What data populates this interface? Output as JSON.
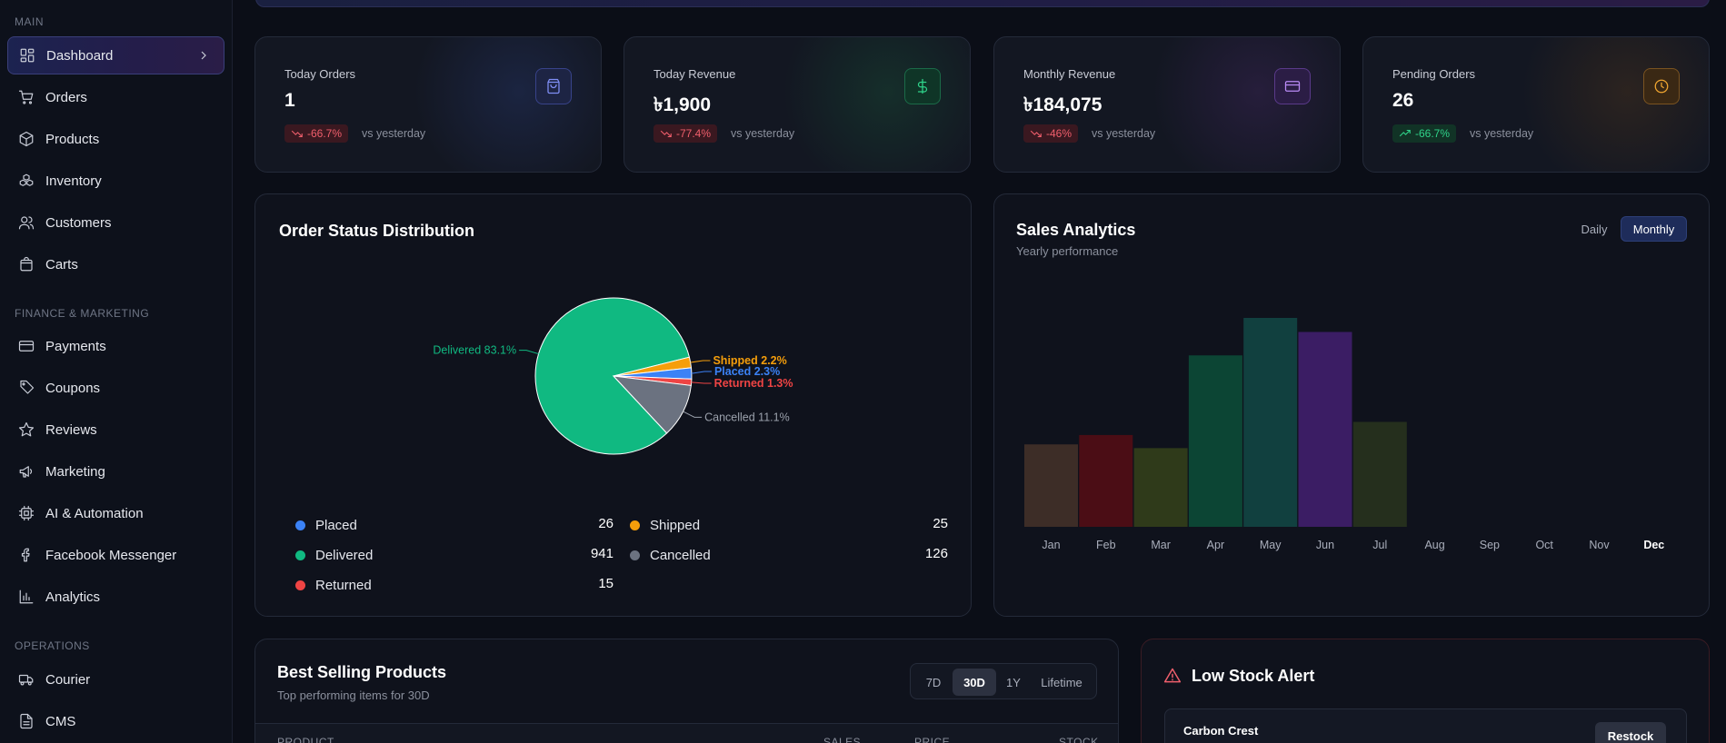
{
  "sidebar": {
    "sections": [
      {
        "title": "MAIN"
      },
      {
        "title": "FINANCE & MARKETING"
      },
      {
        "title": "OPERATIONS"
      }
    ],
    "items": [
      {
        "label": "Dashboard",
        "icon": "dashboard-icon"
      },
      {
        "label": "Orders",
        "icon": "cart-icon"
      },
      {
        "label": "Products",
        "icon": "box-icon"
      },
      {
        "label": "Inventory",
        "icon": "boxes-icon"
      },
      {
        "label": "Customers",
        "icon": "users-icon"
      },
      {
        "label": "Carts",
        "icon": "bag-icon"
      },
      {
        "label": "Payments",
        "icon": "card-icon"
      },
      {
        "label": "Coupons",
        "icon": "tag-icon"
      },
      {
        "label": "Reviews",
        "icon": "star-icon"
      },
      {
        "label": "Marketing",
        "icon": "megaphone-icon"
      },
      {
        "label": "AI & Automation",
        "icon": "chip-icon"
      },
      {
        "label": "Facebook Messenger",
        "icon": "facebook-icon"
      },
      {
        "label": "Analytics",
        "icon": "bar-chart-icon"
      },
      {
        "label": "Courier",
        "icon": "truck-icon"
      },
      {
        "label": "CMS",
        "icon": "document-icon"
      }
    ]
  },
  "stats": [
    {
      "label": "Today Orders",
      "value": "1",
      "change": "-66.7%",
      "trend": "down",
      "vs": "vs yesterday",
      "icon": "shopping-bag-icon",
      "accent": "#6b7cf0"
    },
    {
      "label": "Today Revenue",
      "value": "৳1,900",
      "change": "-77.4%",
      "trend": "down",
      "vs": "vs yesterday",
      "icon": "dollar-icon",
      "accent": "#2fd48a"
    },
    {
      "label": "Monthly Revenue",
      "value": "৳184,075",
      "change": "-46%",
      "trend": "down",
      "vs": "vs yesterday",
      "icon": "credit-card-icon",
      "accent": "#a974f0"
    },
    {
      "label": "Pending Orders",
      "value": "26",
      "change": "-66.7%",
      "trend": "up",
      "vs": "vs yesterday",
      "icon": "clock-icon",
      "accent": "#f0a530"
    }
  ],
  "order_status": {
    "title": "Order Status Distribution",
    "legend": [
      {
        "name": "Placed",
        "value": "26",
        "color": "#3b82f6"
      },
      {
        "name": "Shipped",
        "value": "25",
        "color": "#f59e0b"
      },
      {
        "name": "Delivered",
        "value": "941",
        "color": "#10b981"
      },
      {
        "name": "Cancelled",
        "value": "126",
        "color": "#6b7280"
      },
      {
        "name": "Returned",
        "value": "15",
        "color": "#ef4444"
      }
    ]
  },
  "sales": {
    "title": "Sales Analytics",
    "subtitle": "Yearly performance",
    "toggle_daily": "Daily",
    "toggle_monthly": "Monthly"
  },
  "best_selling": {
    "title": "Best Selling Products",
    "subtitle": "Top performing items for 30D",
    "ranges": [
      "7D",
      "30D",
      "1Y",
      "Lifetime"
    ],
    "active_range": "30D",
    "columns": [
      "PRODUCT",
      "SALES",
      "PRICE",
      "STOCK"
    ]
  },
  "low_stock": {
    "title": "Low Stock Alert",
    "item_name": "Carbon Crest",
    "restock_label": "Restock"
  },
  "chart_data": [
    {
      "type": "pie",
      "title": "Order Status Distribution",
      "slices": [
        {
          "label": "Delivered",
          "value": 941,
          "percent_label": "Delivered 83.1%",
          "color": "#10b981"
        },
        {
          "label": "Shipped",
          "value": 25,
          "percent_label": "Shipped 2.2%",
          "color": "#f59e0b"
        },
        {
          "label": "Placed",
          "value": 26,
          "percent_label": "Placed 2.3%",
          "color": "#3b82f6"
        },
        {
          "label": "Returned",
          "value": 15,
          "percent_label": "Returned 1.3%",
          "color": "#ef4444"
        },
        {
          "label": "Cancelled",
          "value": 126,
          "percent_label": "Cancelled 11.1%",
          "color": "#6b7280"
        }
      ]
    },
    {
      "type": "bar",
      "title": "Sales Analytics",
      "categories": [
        "Jan",
        "Feb",
        "Mar",
        "Apr",
        "May",
        "Jun",
        "Jul",
        "Aug",
        "Sep",
        "Oct",
        "Nov",
        "Dec"
      ],
      "values": [
        88,
        98,
        84,
        183,
        223,
        208,
        112,
        0,
        0,
        0,
        0,
        0
      ],
      "colors": [
        "#3d2d27",
        "#4b0d15",
        "#2f3a1a",
        "#0c4534",
        "#11403f",
        "#3b1d64",
        "#252f1d",
        "#000000",
        "#000000",
        "#000000",
        "#000000",
        "#000000"
      ],
      "highlight": "Dec"
    }
  ]
}
